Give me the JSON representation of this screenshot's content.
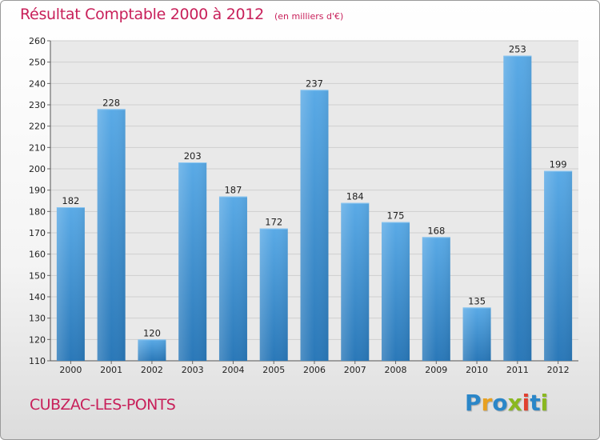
{
  "header": {
    "title": "Résultat Comptable 2000 à 2012",
    "unit": "(en milliers d'€)"
  },
  "footer": {
    "commune": "CUBZAC-LES-PONTS",
    "brand": "Proxiti",
    "brand_letters": [
      {
        "char": "P",
        "color": "#2a86c8"
      },
      {
        "char": "r",
        "color": "#e8a020"
      },
      {
        "char": "o",
        "color": "#2a86c8"
      },
      {
        "char": "x",
        "color": "#8ab820"
      },
      {
        "char": "i",
        "color": "#e04030"
      },
      {
        "char": "t",
        "color": "#2a86c8"
      },
      {
        "char": "i",
        "color": "#8ab820"
      }
    ]
  },
  "colors": {
    "accent": "#c8205a",
    "bar_top": "#5aaae6",
    "bar_bottom": "#2a78b8",
    "grid": "#cfcfcf",
    "plot_bg": "#e9e9e9"
  },
  "chart_data": {
    "type": "bar",
    "title": "Résultat Comptable 2000 à 2012",
    "xlabel": "",
    "ylabel": "",
    "categories": [
      "2000",
      "2001",
      "2002",
      "2003",
      "2004",
      "2005",
      "2006",
      "2007",
      "2008",
      "2009",
      "2010",
      "2011",
      "2012"
    ],
    "values": [
      182,
      228,
      120,
      203,
      187,
      172,
      237,
      184,
      175,
      168,
      135,
      253,
      199
    ],
    "ylim": [
      110,
      260
    ],
    "yticks": [
      110,
      120,
      130,
      140,
      150,
      160,
      170,
      180,
      190,
      200,
      210,
      220,
      230,
      240,
      250,
      260
    ],
    "grid": true
  }
}
